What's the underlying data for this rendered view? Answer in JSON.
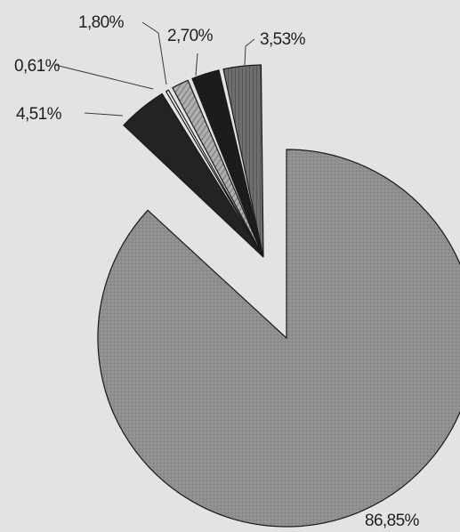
{
  "chart_data": {
    "type": "pie",
    "title": "",
    "exploded": true,
    "slices": [
      {
        "label": "86,85%",
        "value": 86.85,
        "color": "#8f8f8d",
        "pattern": "grain"
      },
      {
        "label": "4,51%",
        "value": 4.51,
        "color": "#232323",
        "pattern": "solid"
      },
      {
        "label": "0,61%",
        "value": 0.61,
        "color": "#f3f3f1",
        "pattern": "solid"
      },
      {
        "label": "1,80%",
        "value": 1.8,
        "color": "#a9a9a7",
        "pattern": "stripes"
      },
      {
        "label": "2,70%",
        "value": 2.7,
        "color": "#1c1c1c",
        "pattern": "solid"
      },
      {
        "label": "3,53%",
        "value": 3.53,
        "color": "#6e6e6c",
        "pattern": "stripes"
      }
    ]
  }
}
